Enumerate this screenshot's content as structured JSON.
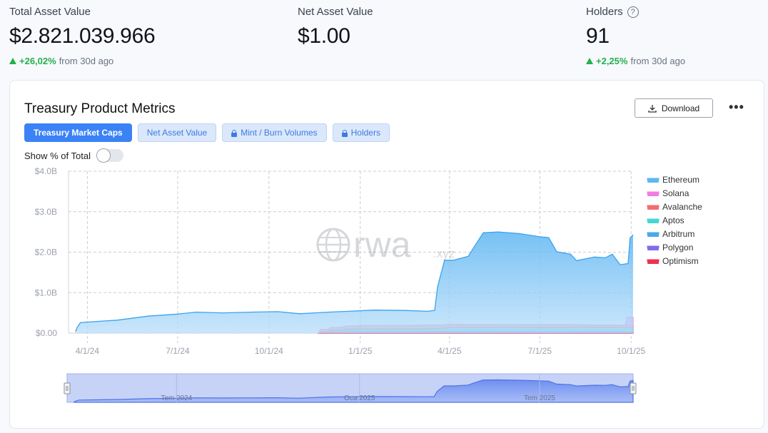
{
  "stats": [
    {
      "label": "Total Asset Value",
      "value": "$2.821.039.966",
      "change": "+26,02%",
      "change_suffix": "from 30d ago"
    },
    {
      "label": "Net Asset Value",
      "value": "$1.00"
    },
    {
      "label": "Holders",
      "value": "91",
      "change": "+2,25%",
      "change_suffix": "from 30d ago",
      "help": "?"
    }
  ],
  "card": {
    "title": "Treasury Product Metrics",
    "download_label": "Download",
    "more_label": "•••",
    "tabs": [
      {
        "label": "Treasury Market Caps",
        "active": true,
        "locked": false
      },
      {
        "label": "Net Asset Value",
        "active": false,
        "locked": false
      },
      {
        "label": "Mint / Burn Volumes",
        "active": false,
        "locked": true
      },
      {
        "label": "Holders",
        "active": false,
        "locked": true
      }
    ],
    "toggle_label": "Show % of Total",
    "toggle_on": false
  },
  "watermark": {
    "main": "rwa",
    "suffix": ".xyz"
  },
  "chart_data": {
    "type": "area",
    "stacked": true,
    "x_tick_labels": [
      "4/1/24",
      "7/1/24",
      "10/1/24",
      "1/1/25",
      "4/1/25",
      "7/1/25",
      "10/1/25"
    ],
    "y_tick_labels": [
      "$0.00",
      "$1.0B",
      "$2.0B",
      "$3.0B",
      "$4.0B"
    ],
    "ylim": [
      0,
      4000000000
    ],
    "xlim": [
      "2024-03-13",
      "2025-10-03"
    ],
    "grid": true,
    "legend_position": "right",
    "navigator_labels": [
      "Tem 2024",
      "Oca 2025",
      "Tem 2025"
    ],
    "series": [
      {
        "name": "Ethereum",
        "color": "#5eb6f2",
        "points": [
          [
            "2024-03-20",
            40000000
          ],
          [
            "2024-03-22",
            150000000
          ],
          [
            "2024-03-25",
            260000000
          ],
          [
            "2024-04-05",
            280000000
          ],
          [
            "2024-05-01",
            320000000
          ],
          [
            "2024-06-01",
            420000000
          ],
          [
            "2024-07-01",
            470000000
          ],
          [
            "2024-07-20",
            520000000
          ],
          [
            "2024-08-15",
            500000000
          ],
          [
            "2024-09-15",
            520000000
          ],
          [
            "2024-10-10",
            530000000
          ],
          [
            "2024-11-01",
            480000000
          ],
          [
            "2024-12-01",
            520000000
          ],
          [
            "2024-12-20",
            540000000
          ],
          [
            "2025-01-15",
            570000000
          ],
          [
            "2025-02-15",
            560000000
          ],
          [
            "2025-03-10",
            540000000
          ],
          [
            "2025-03-17",
            560000000
          ],
          [
            "2025-03-20",
            1150000000
          ],
          [
            "2025-03-27",
            1800000000
          ],
          [
            "2025-04-05",
            1800000000
          ],
          [
            "2025-04-20",
            1900000000
          ],
          [
            "2025-04-25",
            2100000000
          ],
          [
            "2025-05-05",
            2480000000
          ],
          [
            "2025-05-20",
            2500000000
          ],
          [
            "2025-06-10",
            2460000000
          ],
          [
            "2025-07-01",
            2380000000
          ],
          [
            "2025-07-10",
            2360000000
          ],
          [
            "2025-07-18",
            2010000000
          ],
          [
            "2025-08-01",
            1950000000
          ],
          [
            "2025-08-07",
            1790000000
          ],
          [
            "2025-08-25",
            1880000000
          ],
          [
            "2025-09-05",
            1860000000
          ],
          [
            "2025-09-12",
            1950000000
          ],
          [
            "2025-09-20",
            1690000000
          ],
          [
            "2025-09-28",
            1720000000
          ],
          [
            "2025-09-30",
            2350000000
          ],
          [
            "2025-10-03",
            2430000000
          ]
        ]
      },
      {
        "name": "Solana",
        "color": "#f07ce6",
        "points": [
          [
            "2024-11-20",
            0
          ],
          [
            "2025-09-25",
            0
          ],
          [
            "2025-09-26",
            200000000
          ],
          [
            "2025-10-03",
            200000000
          ]
        ]
      },
      {
        "name": "Avalanche",
        "color": "#f07070",
        "points": [
          [
            "2024-11-20",
            0
          ],
          [
            "2024-11-22",
            60000000
          ],
          [
            "2024-12-15",
            70000000
          ],
          [
            "2025-01-01",
            85000000
          ],
          [
            "2025-03-15",
            85000000
          ],
          [
            "2025-04-01",
            75000000
          ],
          [
            "2025-06-15",
            65000000
          ],
          [
            "2025-07-15",
            70000000
          ],
          [
            "2025-10-03",
            60000000
          ]
        ]
      },
      {
        "name": "Aptos",
        "color": "#44d8d2",
        "points": [
          [
            "2024-11-20",
            0
          ],
          [
            "2024-12-15",
            0
          ],
          [
            "2024-12-16",
            25000000
          ],
          [
            "2025-03-20",
            30000000
          ],
          [
            "2025-04-01",
            45000000
          ],
          [
            "2025-10-03",
            40000000
          ]
        ]
      },
      {
        "name": "Arbitrum",
        "color": "#4aa9e8",
        "points": [
          [
            "2024-11-20",
            0
          ],
          [
            "2024-12-01",
            0
          ],
          [
            "2024-12-02",
            40000000
          ],
          [
            "2025-03-20",
            45000000
          ],
          [
            "2025-04-01",
            55000000
          ],
          [
            "2025-07-15",
            60000000
          ],
          [
            "2025-10-03",
            55000000
          ]
        ]
      },
      {
        "name": "Polygon",
        "color": "#7f6ee8",
        "points": [
          [
            "2024-11-20",
            0
          ],
          [
            "2024-11-22",
            20000000
          ],
          [
            "2025-04-01",
            25000000
          ],
          [
            "2025-10-03",
            25000000
          ]
        ]
      },
      {
        "name": "Optimism",
        "color": "#f0304e",
        "points": [
          [
            "2024-11-20",
            0
          ],
          [
            "2024-11-22",
            12000000
          ],
          [
            "2025-10-03",
            12000000
          ]
        ]
      }
    ]
  }
}
